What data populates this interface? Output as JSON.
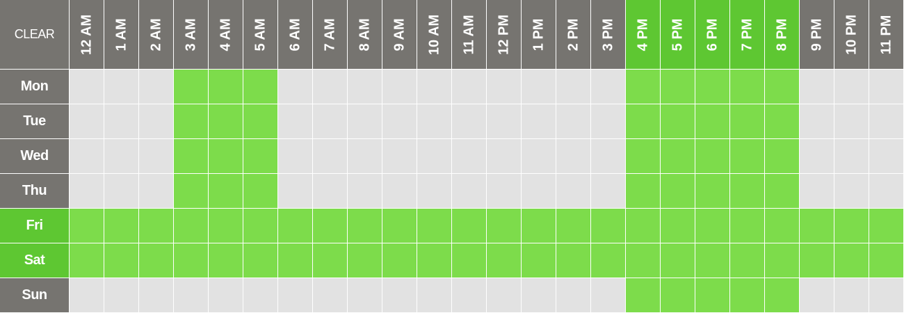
{
  "clear_label": "CLEAR",
  "colors": {
    "header_gray": "#767470",
    "header_active_green": "#5ec732",
    "cell_off": "#e2e2e2",
    "cell_on": "#7ddc4b"
  },
  "hours": [
    {
      "label": "12 AM",
      "active": false
    },
    {
      "label": "1 AM",
      "active": false
    },
    {
      "label": "2 AM",
      "active": false
    },
    {
      "label": "3 AM",
      "active": false
    },
    {
      "label": "4 AM",
      "active": false
    },
    {
      "label": "5 AM",
      "active": false
    },
    {
      "label": "6 AM",
      "active": false
    },
    {
      "label": "7 AM",
      "active": false
    },
    {
      "label": "8 AM",
      "active": false
    },
    {
      "label": "9 AM",
      "active": false
    },
    {
      "label": "10 AM",
      "active": false
    },
    {
      "label": "11 AM",
      "active": false
    },
    {
      "label": "12 PM",
      "active": false
    },
    {
      "label": "1 PM",
      "active": false
    },
    {
      "label": "2 PM",
      "active": false
    },
    {
      "label": "3 PM",
      "active": false
    },
    {
      "label": "4 PM",
      "active": true
    },
    {
      "label": "5 PM",
      "active": true
    },
    {
      "label": "6 PM",
      "active": true
    },
    {
      "label": "7 PM",
      "active": true
    },
    {
      "label": "8 PM",
      "active": true
    },
    {
      "label": "9 PM",
      "active": false
    },
    {
      "label": "10 PM",
      "active": false
    },
    {
      "label": "11 PM",
      "active": false
    }
  ],
  "days": [
    {
      "label": "Mon",
      "active": false,
      "slots": [
        0,
        0,
        0,
        1,
        1,
        1,
        0,
        0,
        0,
        0,
        0,
        0,
        0,
        0,
        0,
        0,
        1,
        1,
        1,
        1,
        1,
        0,
        0,
        0
      ]
    },
    {
      "label": "Tue",
      "active": false,
      "slots": [
        0,
        0,
        0,
        1,
        1,
        1,
        0,
        0,
        0,
        0,
        0,
        0,
        0,
        0,
        0,
        0,
        1,
        1,
        1,
        1,
        1,
        0,
        0,
        0
      ]
    },
    {
      "label": "Wed",
      "active": false,
      "slots": [
        0,
        0,
        0,
        1,
        1,
        1,
        0,
        0,
        0,
        0,
        0,
        0,
        0,
        0,
        0,
        0,
        1,
        1,
        1,
        1,
        1,
        0,
        0,
        0
      ]
    },
    {
      "label": "Thu",
      "active": false,
      "slots": [
        0,
        0,
        0,
        1,
        1,
        1,
        0,
        0,
        0,
        0,
        0,
        0,
        0,
        0,
        0,
        0,
        1,
        1,
        1,
        1,
        1,
        0,
        0,
        0
      ]
    },
    {
      "label": "Fri",
      "active": true,
      "slots": [
        1,
        1,
        1,
        1,
        1,
        1,
        1,
        1,
        1,
        1,
        1,
        1,
        1,
        1,
        1,
        1,
        1,
        1,
        1,
        1,
        1,
        1,
        1,
        1
      ]
    },
    {
      "label": "Sat",
      "active": true,
      "slots": [
        1,
        1,
        1,
        1,
        1,
        1,
        1,
        1,
        1,
        1,
        1,
        1,
        1,
        1,
        1,
        1,
        1,
        1,
        1,
        1,
        1,
        1,
        1,
        1
      ]
    },
    {
      "label": "Sun",
      "active": false,
      "slots": [
        0,
        0,
        0,
        0,
        0,
        0,
        0,
        0,
        0,
        0,
        0,
        0,
        0,
        0,
        0,
        0,
        1,
        1,
        1,
        1,
        1,
        0,
        0,
        0
      ]
    }
  ]
}
